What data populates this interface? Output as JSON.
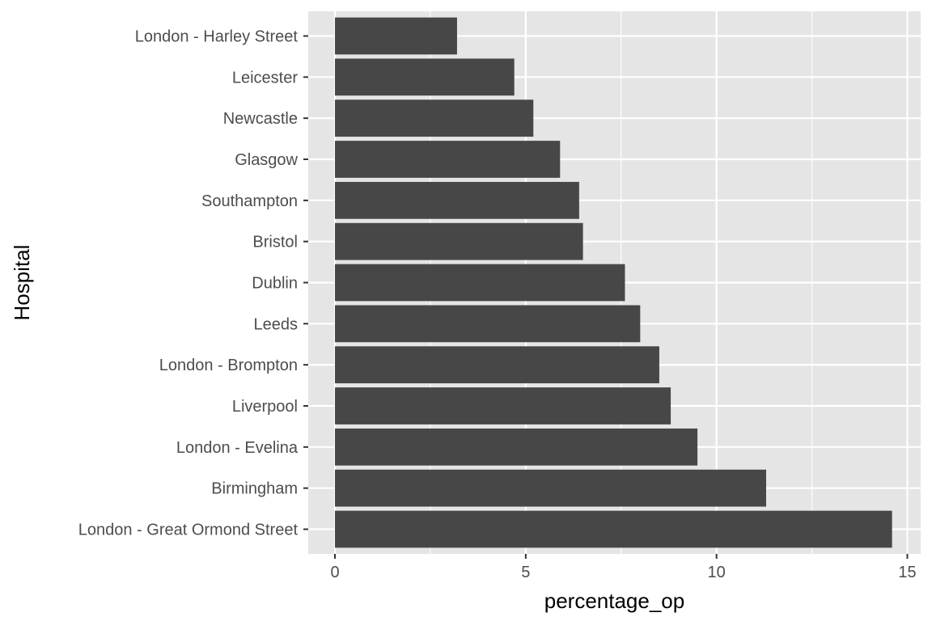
{
  "chart_data": {
    "type": "bar",
    "orientation": "horizontal",
    "xlabel": "percentage_op",
    "ylabel": "Hospital",
    "xlim": [
      -0.7,
      15.35
    ],
    "xticks": [
      0,
      5,
      10,
      15
    ],
    "grid": true,
    "legend": "none",
    "categories": [
      "London - Harley Street",
      "Leicester",
      "Newcastle",
      "Glasgow",
      "Southampton",
      "Bristol",
      "Dublin",
      "Leeds",
      "London - Brompton",
      "Liverpool",
      "London - Evelina",
      "Birmingham",
      "London - Great Ormond Street"
    ],
    "values": [
      3.2,
      4.7,
      5.2,
      5.9,
      6.4,
      6.5,
      7.6,
      8.0,
      8.5,
      8.8,
      9.5,
      11.3,
      14.6
    ],
    "colors": {
      "bar": "#474747",
      "panel": "#e5e5e5",
      "grid": "#ffffff",
      "tick": "#333333"
    }
  }
}
